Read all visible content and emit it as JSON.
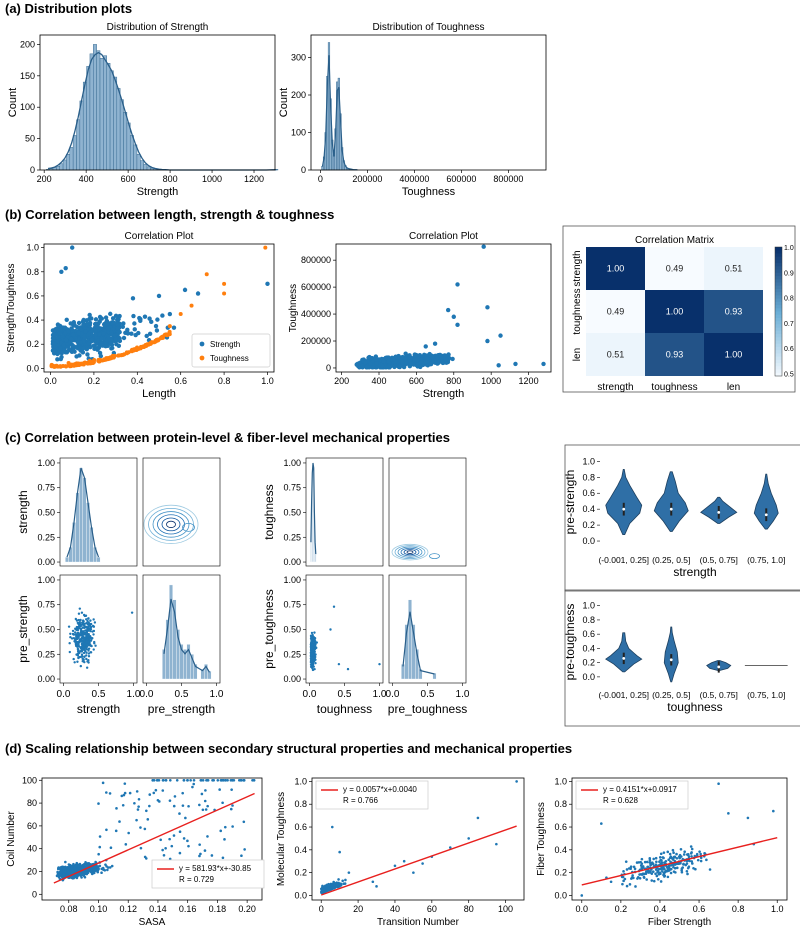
{
  "sections": {
    "a": "(a) Distribution plots",
    "b": "(b) Correlation between length, strength & toughness",
    "c": "(c) Correlation between protein-level & fiber-level mechanical properties",
    "d": "(d) Scaling relationship between secondary structural properties and mechanical properties"
  },
  "colors": {
    "blue": "#1f77b4",
    "bar": "#8fb3d0",
    "orange": "#ff7f0e",
    "red": "#e8201e",
    "violin": "#2f6fa6"
  },
  "chart_data": [
    {
      "id": "a1",
      "type": "histogram",
      "title": "Distribution of Strength",
      "xlabel": "Strength",
      "ylabel": "Count",
      "xlim": [
        180,
        1300
      ],
      "ylim": [
        0,
        215
      ],
      "xticks": [
        "200",
        "400",
        "600",
        "800",
        "1000",
        "1200"
      ],
      "yticks": [
        "0",
        "50",
        "100",
        "150",
        "200"
      ],
      "bins_start": 210,
      "bin_width": 16,
      "counts": [
        1,
        2,
        4,
        6,
        10,
        16,
        25,
        36,
        55,
        80,
        110,
        140,
        165,
        185,
        200,
        190,
        178,
        182,
        170,
        158,
        148,
        130,
        112,
        92,
        75,
        55,
        40,
        25,
        15,
        9,
        5,
        3,
        2,
        1,
        1,
        0,
        0,
        0,
        0,
        0,
        0,
        0,
        0,
        0,
        0,
        0,
        0,
        0,
        0,
        0,
        0,
        0,
        0,
        0,
        0,
        0,
        0,
        0,
        0,
        0,
        0,
        0,
        0,
        0,
        0,
        0,
        0,
        0,
        1
      ]
    },
    {
      "id": "a2",
      "type": "histogram",
      "title": "Distribution of Toughness",
      "xlabel": "Toughness",
      "ylabel": "Count",
      "xlim": [
        -40000,
        960000
      ],
      "ylim": [
        0,
        360
      ],
      "xticks": [
        "0",
        "200000",
        "400000",
        "600000",
        "800000"
      ],
      "yticks": [
        "0",
        "100",
        "200",
        "300"
      ],
      "bins_start": 5000,
      "bin_width": 7000,
      "counts": [
        10,
        35,
        100,
        250,
        340,
        190,
        80,
        40,
        110,
        235,
        245,
        150,
        60,
        25,
        12,
        6,
        4,
        3,
        2,
        1,
        1,
        1
      ]
    },
    {
      "id": "b1",
      "type": "scatter",
      "title": "Correlation Plot",
      "xlabel": "Length",
      "ylabel": "Strength/Toughness",
      "xlim": [
        0,
        1
      ],
      "ylim": [
        0,
        1
      ],
      "xticks": [
        "0.0",
        "0.2",
        "0.4",
        "0.6",
        "0.8",
        "1.0"
      ],
      "yticks": [
        "0.0",
        "0.2",
        "0.4",
        "0.6",
        "0.8",
        "1.0"
      ],
      "legend": [
        "Strength",
        "Toughness"
      ],
      "strength_outliers": [
        [
          0.05,
          0.8
        ],
        [
          0.07,
          0.83
        ],
        [
          0.1,
          1.0
        ],
        [
          0.38,
          0.58
        ],
        [
          0.5,
          0.6
        ],
        [
          0.62,
          0.65
        ],
        [
          0.68,
          0.62
        ],
        [
          1.0,
          0.7
        ],
        [
          0.55,
          0.45
        ]
      ],
      "toughness_points": [
        [
          0.72,
          0.78
        ],
        [
          0.8,
          0.7
        ],
        [
          0.8,
          0.62
        ],
        [
          0.99,
          1.0
        ],
        [
          0.65,
          0.52
        ],
        [
          0.6,
          0.45
        ],
        [
          0.55,
          0.35
        ]
      ]
    },
    {
      "id": "b2",
      "type": "scatter",
      "title": "Correlation Plot",
      "xlabel": "Strength",
      "ylabel": "Toughness",
      "xlim": [
        170,
        1320
      ],
      "ylim": [
        -30000,
        920000
      ],
      "xticks": [
        "200",
        "400",
        "600",
        "800",
        "1000",
        "1200"
      ],
      "yticks": [
        "0",
        "200000",
        "400000",
        "600000",
        "800000"
      ],
      "outliers": [
        [
          960,
          900000
        ],
        [
          820,
          620000
        ],
        [
          980,
          450000
        ],
        [
          770,
          430000
        ],
        [
          800,
          380000
        ],
        [
          820,
          320000
        ],
        [
          1050,
          240000
        ],
        [
          980,
          200000
        ],
        [
          1130,
          30000
        ],
        [
          1280,
          30000
        ],
        [
          1040,
          20000
        ],
        [
          700,
          180000
        ],
        [
          650,
          160000
        ]
      ]
    },
    {
      "id": "b3",
      "type": "heatmap",
      "title": "Correlation Matrix",
      "labels": [
        "strength",
        "toughness",
        "len"
      ],
      "values": [
        [
          1.0,
          0.49,
          0.51
        ],
        [
          0.49,
          1.0,
          0.93
        ],
        [
          0.51,
          0.93,
          1.0
        ]
      ],
      "display": [
        [
          "1.00",
          "0.49",
          "0.51"
        ],
        [
          "0.49",
          "1.00",
          "0.93"
        ],
        [
          "0.51",
          "0.93",
          "1.00"
        ]
      ],
      "colorbar_ticks": [
        "0.5",
        "0.6",
        "0.7",
        "0.8",
        "0.9",
        "1.0"
      ],
      "vmin": 0.49,
      "vmax": 1.0
    },
    {
      "id": "c_pair1",
      "type": "pairplot",
      "vars": [
        "strength",
        "pre_strength"
      ],
      "xticks": [
        "0.0",
        "0.5",
        "1.0"
      ],
      "yticks": [
        "0.00",
        "0.25",
        "0.50",
        "0.75",
        "1.00"
      ]
    },
    {
      "id": "c_pair2",
      "type": "pairplot",
      "vars": [
        "toughness",
        "pre_toughness"
      ],
      "xticks": [
        "0.0",
        "0.5",
        "1.0"
      ],
      "yticks": [
        "0.00",
        "0.25",
        "0.50",
        "0.75",
        "1.00"
      ]
    },
    {
      "id": "c_v1",
      "type": "violin",
      "xlabel": "strength",
      "ylabel": "pre-strength",
      "categories": [
        "(-0.001, 0.25]",
        "(0.25, 0.5]",
        "(0.5, 0.75]",
        "(0.75, 1.0]"
      ],
      "yticks": [
        "0.0",
        "0.2",
        "0.4",
        "0.6",
        "0.8",
        "1.0"
      ],
      "ylim": [
        -0.1,
        1.08
      ],
      "medians": [
        0.4,
        0.4,
        0.36,
        0.33
      ]
    },
    {
      "id": "c_v2",
      "type": "violin",
      "xlabel": "toughness",
      "ylabel": "pre-toughness",
      "categories": [
        "(-0.001, 0.25]",
        "(0.25, 0.5]",
        "(0.5, 0.75]",
        "(0.75, 1.0]"
      ],
      "yticks": [
        "0.0",
        "0.2",
        "0.4",
        "0.6",
        "0.8",
        "1.0"
      ],
      "ylim": [
        -0.1,
        1.08
      ],
      "medians": [
        0.26,
        0.24,
        0.14,
        0.16
      ]
    },
    {
      "id": "d1",
      "type": "scatter",
      "xlabel": "SASA",
      "ylabel": "Coil Number",
      "xlim": [
        0.062,
        0.21
      ],
      "ylim": [
        -5,
        102
      ],
      "xticks": [
        "0.08",
        "0.10",
        "0.12",
        "0.14",
        "0.16",
        "0.18",
        "0.20"
      ],
      "xtick_values": [
        0.08,
        0.1,
        0.12,
        0.14,
        0.16,
        0.18,
        0.2
      ],
      "yticks": [
        "0",
        "20",
        "40",
        "60",
        "80",
        "100"
      ],
      "fit": {
        "slope": 581.93,
        "intercept": -30.85,
        "x0": 0.07,
        "x1": 0.205
      },
      "fit_label": "y = 581.93*x+-30.85",
      "r_label": "R = 0.729"
    },
    {
      "id": "d2",
      "type": "scatter",
      "xlabel": "Transition Number",
      "ylabel": "Molecular Toughness",
      "xlim": [
        -5,
        110
      ],
      "ylim": [
        -0.04,
        1.03
      ],
      "xticks": [
        "0",
        "20",
        "40",
        "60",
        "80",
        "100"
      ],
      "yticks": [
        "0.0",
        "0.2",
        "0.4",
        "0.6",
        "0.8",
        "1.0"
      ],
      "fit": {
        "slope": 0.0057,
        "intercept": 0.004,
        "x0": 0,
        "x1": 106
      },
      "fit_label": "y = 0.0057*x+0.0040",
      "r_label": "R = 0.766"
    },
    {
      "id": "d3",
      "type": "scatter",
      "xlabel": "Fiber Strength",
      "ylabel": "Fiber Toughness",
      "xlim": [
        -0.05,
        1.05
      ],
      "ylim": [
        -0.04,
        1.03
      ],
      "xticks": [
        "0.0",
        "0.2",
        "0.4",
        "0.6",
        "0.8",
        "1.0"
      ],
      "yticks": [
        "0.0",
        "0.2",
        "0.4",
        "0.6",
        "0.8",
        "1.0"
      ],
      "fit": {
        "slope": 0.4151,
        "intercept": 0.0917,
        "x0": 0,
        "x1": 1
      },
      "fit_label": "y = 0.4151*x+0.0917",
      "r_label": "R = 0.628"
    }
  ]
}
